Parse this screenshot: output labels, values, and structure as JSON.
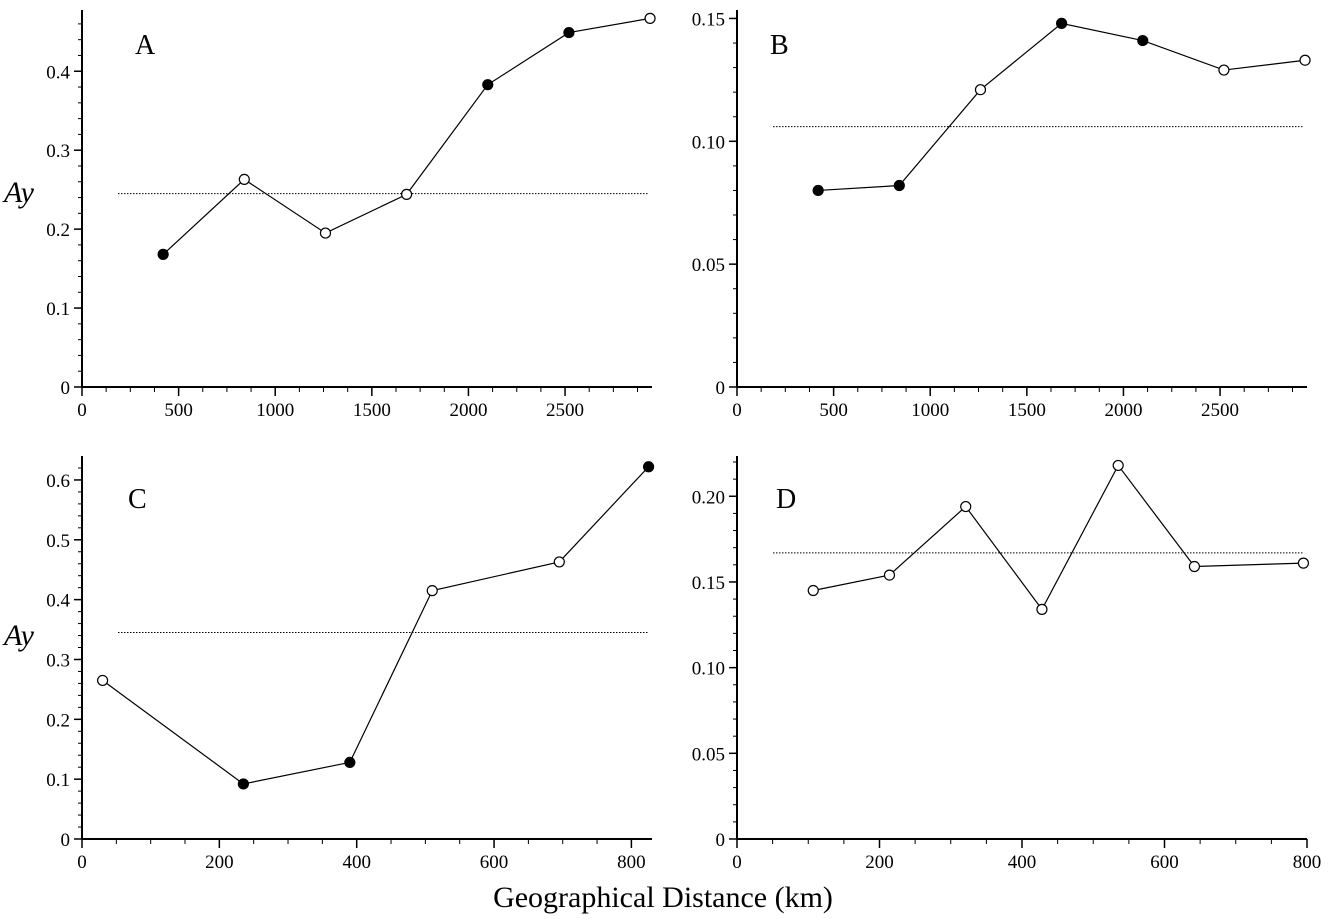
{
  "figure": {
    "xlabel": "Geographical Distance (km)",
    "ylabel": "Ay"
  },
  "chart_data": [
    {
      "type": "line",
      "panel": "A",
      "xlim": [
        0,
        2950
      ],
      "ylim": [
        0,
        0.47
      ],
      "x_ticks": [
        0,
        500,
        1000,
        1500,
        2000,
        2500
      ],
      "y_ticks": [
        0,
        0.1,
        0.2,
        0.3,
        0.4
      ],
      "y_tick_labels": [
        "0",
        "0.1",
        "0.2",
        "0.3",
        "0.4"
      ],
      "mean_line": 0.245,
      "x": [
        420,
        840,
        1260,
        1680,
        2100,
        2520,
        2940
      ],
      "y": [
        0.168,
        0.263,
        0.195,
        0.244,
        0.383,
        0.449,
        0.467
      ],
      "significant": [
        true,
        false,
        false,
        false,
        true,
        true,
        false
      ],
      "ylabel": "Ay"
    },
    {
      "type": "line",
      "panel": "B",
      "xlim": [
        0,
        2950
      ],
      "ylim": [
        0,
        0.151
      ],
      "x_ticks": [
        0,
        500,
        1000,
        1500,
        2000,
        2500
      ],
      "y_ticks": [
        0,
        0.05,
        0.1,
        0.15
      ],
      "y_tick_labels": [
        "0",
        "0.05",
        "0.10",
        "0.15"
      ],
      "mean_line": 0.106,
      "x": [
        420,
        840,
        1260,
        1680,
        2100,
        2520,
        2940
      ],
      "y": [
        0.08,
        0.082,
        0.121,
        0.148,
        0.141,
        0.129,
        0.133
      ],
      "significant": [
        true,
        true,
        false,
        true,
        true,
        false,
        false
      ],
      "ylabel": ""
    },
    {
      "type": "line",
      "panel": "C",
      "xlim": [
        0,
        830
      ],
      "ylim": [
        0,
        0.63
      ],
      "x_ticks": [
        0,
        200,
        400,
        600,
        800
      ],
      "y_ticks": [
        0,
        0.1,
        0.2,
        0.3,
        0.4,
        0.5,
        0.6
      ],
      "y_tick_labels": [
        "0",
        "0.1",
        "0.2",
        "0.3",
        "0.4",
        "0.5",
        "0.6"
      ],
      "mean_line": 0.345,
      "x": [
        30,
        235,
        390,
        510,
        695,
        825
      ],
      "y": [
        0.265,
        0.092,
        0.128,
        0.415,
        0.463,
        0.622
      ],
      "significant": [
        false,
        true,
        true,
        false,
        false,
        true
      ],
      "ylabel": "Ay"
    },
    {
      "type": "line",
      "panel": "D",
      "xlim": [
        0,
        800
      ],
      "ylim": [
        0,
        0.22
      ],
      "x_ticks": [
        0,
        200,
        400,
        600,
        800
      ],
      "y_ticks": [
        0,
        0.05,
        0.1,
        0.15,
        0.2
      ],
      "y_tick_labels": [
        "0",
        "0.05",
        "0.10",
        "0.15",
        "0.20"
      ],
      "mean_line": 0.167,
      "x": [
        107,
        214,
        321,
        428,
        535,
        642,
        795
      ],
      "y": [
        0.145,
        0.154,
        0.194,
        0.134,
        0.218,
        0.159,
        0.161
      ],
      "significant": [
        false,
        false,
        false,
        false,
        false,
        false,
        false
      ],
      "ylabel": ""
    }
  ]
}
